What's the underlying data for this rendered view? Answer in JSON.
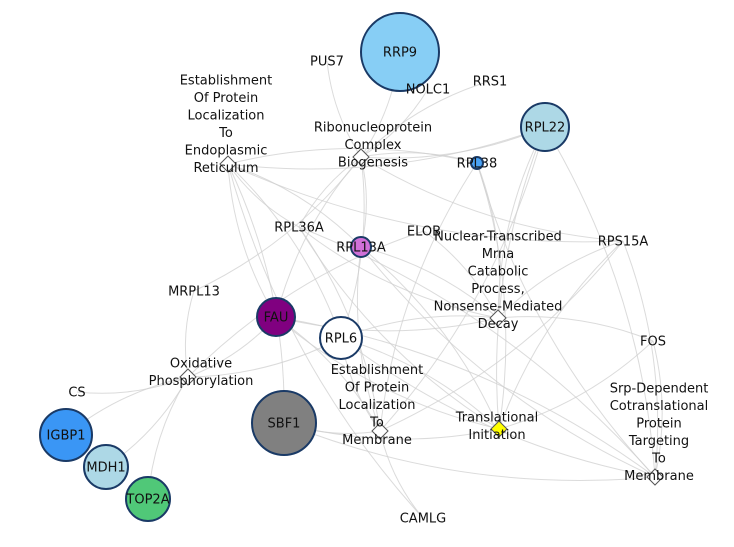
{
  "network": {
    "genes": [
      {
        "id": "RRP9",
        "label": "RRP9",
        "color": "#87cef5"
      },
      {
        "id": "PUS7",
        "label": "PUS7",
        "color": null
      },
      {
        "id": "NOLC1",
        "label": "NOLC1",
        "color": null
      },
      {
        "id": "RRS1",
        "label": "RRS1",
        "color": null
      },
      {
        "id": "RPL22",
        "label": "RPL22",
        "color": "#add8e6"
      },
      {
        "id": "RPL38",
        "label": "RPL38",
        "color": "#4aa3f5"
      },
      {
        "id": "RPL36A",
        "label": "RPL36A",
        "color": null
      },
      {
        "id": "ELOB",
        "label": "ELOB",
        "color": null
      },
      {
        "id": "RPL13A",
        "label": "RPL13A",
        "color": "#d070d8"
      },
      {
        "id": "RPS15A",
        "label": "RPS15A",
        "color": null
      },
      {
        "id": "MRPL13",
        "label": "MRPL13",
        "color": null
      },
      {
        "id": "FAU",
        "label": "FAU",
        "color": "#800080"
      },
      {
        "id": "RPL6",
        "label": "RPL6",
        "color": "#ffffff"
      },
      {
        "id": "FOS",
        "label": "FOS",
        "color": null
      },
      {
        "id": "CS",
        "label": "CS",
        "color": null
      },
      {
        "id": "SBF1",
        "label": "SBF1",
        "color": "#808080"
      },
      {
        "id": "IGBP1",
        "label": "IGBP1",
        "color": "#3a96f5"
      },
      {
        "id": "MDH1",
        "label": "MDH1",
        "color": "#add8e6"
      },
      {
        "id": "TOP2A",
        "label": "TOP2A",
        "color": "#50c878"
      },
      {
        "id": "CAMLG",
        "label": "CAMLG",
        "color": null
      }
    ],
    "terms": [
      {
        "id": "t_er",
        "lines": [
          "Establishment",
          "Of Protein",
          "Localization",
          "To",
          "Endoplasmic",
          "Reticulum"
        ],
        "fill": "#ffffff"
      },
      {
        "id": "t_rnp",
        "lines": [
          "Ribonucleoprotein",
          "Complex",
          "Biogenesis"
        ],
        "fill": "#ffffff"
      },
      {
        "id": "t_nmd",
        "lines": [
          "Nuclear-Transcribed",
          "Mrna",
          "Catabolic",
          "Process,",
          "Nonsense-Mediated",
          "Decay"
        ],
        "fill": "#ffffff"
      },
      {
        "id": "t_ox",
        "lines": [
          "Oxidative",
          "Phosphorylation"
        ],
        "fill": "#ffffff"
      },
      {
        "id": "t_mem",
        "lines": [
          "Establishment",
          "Of Protein",
          "Localization",
          "To",
          "Membrane"
        ],
        "fill": "#ffffff"
      },
      {
        "id": "t_ti",
        "lines": [
          "Translational",
          "Initiation"
        ],
        "fill": "#ffff00"
      },
      {
        "id": "t_srp",
        "lines": [
          "Srp-Dependent",
          "Cotranslational",
          "Protein",
          "Targeting",
          "To",
          "Membrane"
        ],
        "fill": "#ffffff"
      }
    ],
    "edges": [
      [
        "RRP9",
        "t_rnp"
      ],
      [
        "PUS7",
        "t_rnp"
      ],
      [
        "NOLC1",
        "t_rnp"
      ],
      [
        "RRS1",
        "t_rnp"
      ],
      [
        "RPL22",
        "t_rnp"
      ],
      [
        "RPL38",
        "t_rnp"
      ],
      [
        "RPL36A",
        "t_rnp"
      ],
      [
        "RPL13A",
        "t_rnp"
      ],
      [
        "FAU",
        "t_rnp"
      ],
      [
        "RPL6",
        "t_rnp"
      ],
      [
        "RPS15A",
        "t_rnp"
      ],
      [
        "MRPL13",
        "t_rnp"
      ],
      [
        "RPL22",
        "t_er"
      ],
      [
        "RPL38",
        "t_er"
      ],
      [
        "RPL36A",
        "t_er"
      ],
      [
        "RPL13A",
        "t_er"
      ],
      [
        "FAU",
        "t_er"
      ],
      [
        "RPL6",
        "t_er"
      ],
      [
        "RPS15A",
        "t_er"
      ],
      [
        "SBF1",
        "t_er"
      ],
      [
        "CAMLG",
        "t_er"
      ],
      [
        "RPL22",
        "t_nmd"
      ],
      [
        "RPL38",
        "t_nmd"
      ],
      [
        "RPL36A",
        "t_nmd"
      ],
      [
        "RPL13A",
        "t_nmd"
      ],
      [
        "FAU",
        "t_nmd"
      ],
      [
        "RPL6",
        "t_nmd"
      ],
      [
        "RPS15A",
        "t_nmd"
      ],
      [
        "ELOB",
        "t_nmd"
      ],
      [
        "FOS",
        "t_nmd"
      ],
      [
        "RPL22",
        "t_mem"
      ],
      [
        "RPL38",
        "t_mem"
      ],
      [
        "RPL36A",
        "t_mem"
      ],
      [
        "RPL13A",
        "t_mem"
      ],
      [
        "FAU",
        "t_mem"
      ],
      [
        "RPL6",
        "t_mem"
      ],
      [
        "RPS15A",
        "t_mem"
      ],
      [
        "SBF1",
        "t_mem"
      ],
      [
        "CAMLG",
        "t_mem"
      ],
      [
        "RPL22",
        "t_ti"
      ],
      [
        "RPL38",
        "t_ti"
      ],
      [
        "RPL36A",
        "t_ti"
      ],
      [
        "RPL13A",
        "t_ti"
      ],
      [
        "FAU",
        "t_ti"
      ],
      [
        "RPL6",
        "t_ti"
      ],
      [
        "RPS15A",
        "t_ti"
      ],
      [
        "FOS",
        "t_ti"
      ],
      [
        "SBF1",
        "t_ti"
      ],
      [
        "RPL22",
        "t_srp"
      ],
      [
        "RPL38",
        "t_srp"
      ],
      [
        "RPL36A",
        "t_srp"
      ],
      [
        "RPL13A",
        "t_srp"
      ],
      [
        "FAU",
        "t_srp"
      ],
      [
        "RPL6",
        "t_srp"
      ],
      [
        "RPS15A",
        "t_srp"
      ],
      [
        "SBF1",
        "t_srp"
      ],
      [
        "FOS",
        "t_srp"
      ],
      [
        "CS",
        "t_ox"
      ],
      [
        "IGBP1",
        "t_ox"
      ],
      [
        "MDH1",
        "t_ox"
      ],
      [
        "TOP2A",
        "t_ox"
      ],
      [
        "MRPL13",
        "t_ox"
      ],
      [
        "FAU",
        "t_ox"
      ],
      [
        "ELOB",
        "t_ox"
      ],
      [
        "RPL6",
        "t_ox"
      ]
    ]
  }
}
